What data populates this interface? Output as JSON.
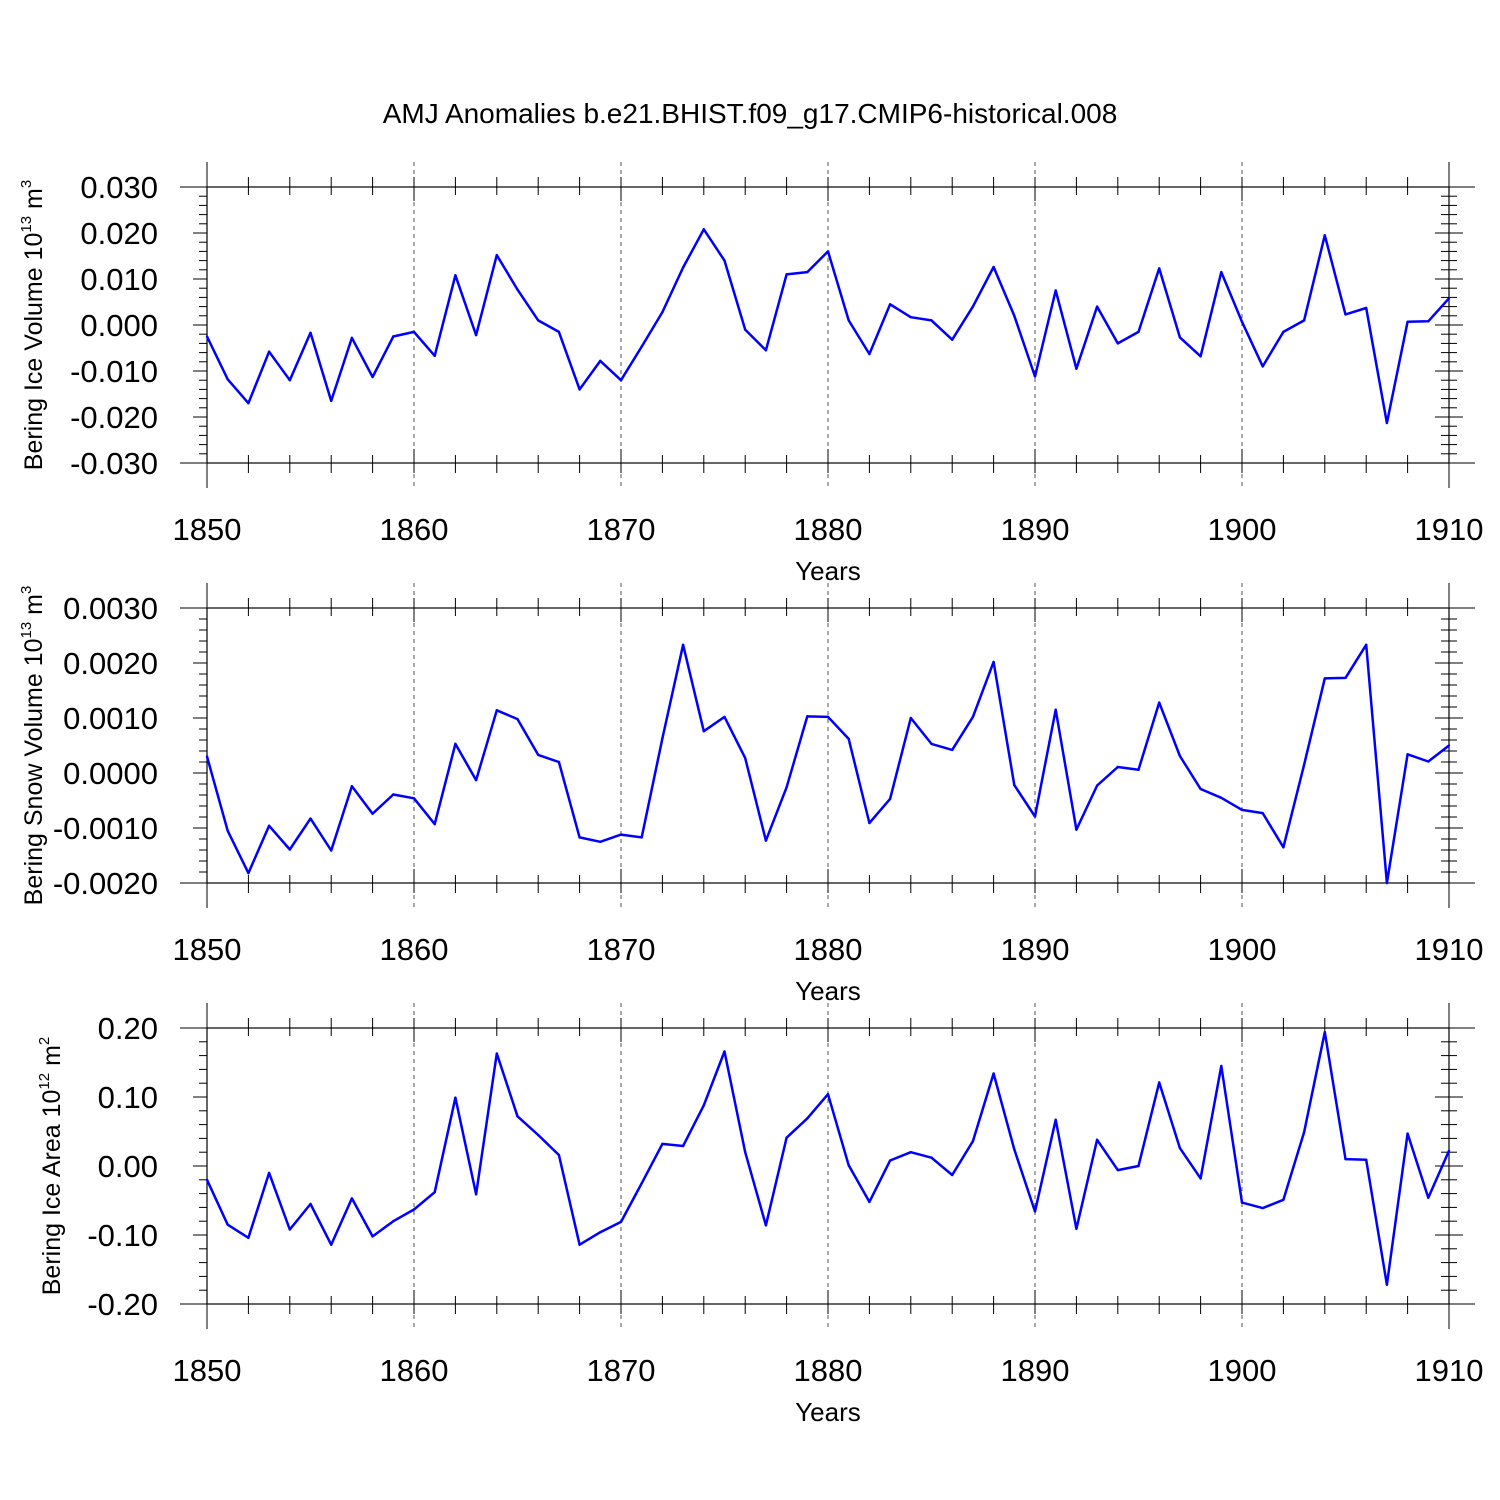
{
  "title": "AMJ Anomalies b.e21.BHIST.f09_g17.CMIP6-historical.008",
  "colors": {
    "series": "#0000ff",
    "axis": "#000000",
    "grid": "#555555"
  },
  "chart_data": [
    {
      "type": "line",
      "name": "ice-volume",
      "ylabel_main": "Bering Ice Volume 10",
      "ylabel_sup": "13",
      "ylabel_unit": " m",
      "ylabel_unit_sup": "3",
      "xlabel": "Years",
      "xlim": [
        1850,
        1910
      ],
      "ylim": [
        -0.03,
        0.03
      ],
      "xticks": [
        1850,
        1860,
        1870,
        1880,
        1890,
        1900,
        1910
      ],
      "xtick_labels": [
        "1850",
        "1860",
        "1870",
        "1880",
        "1890",
        "1900",
        "1910"
      ],
      "yticks": [
        -0.03,
        -0.02,
        -0.01,
        0.0,
        0.01,
        0.02,
        0.03
      ],
      "ytick_labels": [
        "-0.030",
        "-0.020",
        "-0.010",
        "0.000",
        "0.010",
        "0.020",
        "0.030"
      ],
      "grid_x": [
        1860,
        1870,
        1880,
        1890,
        1900
      ],
      "x": [
        1850,
        1851,
        1852,
        1853,
        1854,
        1855,
        1856,
        1857,
        1858,
        1859,
        1860,
        1861,
        1862,
        1863,
        1864,
        1865,
        1866,
        1867,
        1868,
        1869,
        1870,
        1871,
        1872,
        1873,
        1874,
        1875,
        1876,
        1877,
        1878,
        1879,
        1880,
        1881,
        1882,
        1883,
        1884,
        1885,
        1886,
        1887,
        1888,
        1889,
        1890,
        1891,
        1892,
        1893,
        1894,
        1895,
        1896,
        1897,
        1898,
        1899,
        1900,
        1901,
        1902,
        1903,
        1904,
        1905,
        1906,
        1907,
        1908,
        1909,
        1910
      ],
      "values": [
        -0.0025,
        -0.0118,
        -0.017,
        -0.0058,
        -0.012,
        -0.0017,
        -0.0165,
        -0.0028,
        -0.0113,
        -0.0025,
        -0.0015,
        -0.0067,
        0.0108,
        -0.0022,
        0.0152,
        0.0077,
        0.001,
        -0.0015,
        -0.014,
        -0.0078,
        -0.012,
        -0.0047,
        0.0028,
        0.0125,
        0.0208,
        0.014,
        -0.001,
        -0.0055,
        0.011,
        0.0115,
        0.016,
        0.001,
        -0.0063,
        0.0045,
        0.0017,
        0.001,
        -0.0032,
        0.004,
        0.0126,
        0.002,
        -0.0112,
        0.0075,
        -0.0095,
        0.004,
        -0.004,
        -0.0015,
        0.0123,
        -0.0027,
        -0.0068,
        0.0115,
        0.0007,
        -0.009,
        -0.0015,
        0.001,
        0.0195,
        0.0023,
        0.0037,
        -0.0213,
        0.0007,
        0.0008,
        0.0058
      ]
    },
    {
      "type": "line",
      "name": "snow-volume",
      "ylabel_main": "Bering Snow Volume 10",
      "ylabel_sup": "13",
      "ylabel_unit": " m",
      "ylabel_unit_sup": "3",
      "xlabel": "Years",
      "xlim": [
        1850,
        1910
      ],
      "ylim": [
        -0.002,
        0.003
      ],
      "xticks": [
        1850,
        1860,
        1870,
        1880,
        1890,
        1900,
        1910
      ],
      "xtick_labels": [
        "1850",
        "1860",
        "1870",
        "1880",
        "1890",
        "1900",
        "1910"
      ],
      "yticks": [
        -0.002,
        -0.001,
        0.0,
        0.001,
        0.002,
        0.003
      ],
      "ytick_labels": [
        "-0.0020",
        "-0.0010",
        "0.0000",
        "0.0010",
        "0.0020",
        "0.0030"
      ],
      "grid_x": [
        1860,
        1870,
        1880,
        1890,
        1900
      ],
      "x": [
        1850,
        1851,
        1852,
        1853,
        1854,
        1855,
        1856,
        1857,
        1858,
        1859,
        1860,
        1861,
        1862,
        1863,
        1864,
        1865,
        1866,
        1867,
        1868,
        1869,
        1870,
        1871,
        1872,
        1873,
        1874,
        1875,
        1876,
        1877,
        1878,
        1879,
        1880,
        1881,
        1882,
        1883,
        1884,
        1885,
        1886,
        1887,
        1888,
        1889,
        1890,
        1891,
        1892,
        1893,
        1894,
        1895,
        1896,
        1897,
        1898,
        1899,
        1900,
        1901,
        1902,
        1903,
        1904,
        1905,
        1906,
        1907,
        1908,
        1909,
        1910
      ],
      "values": [
        0.0003,
        -0.00105,
        -0.00182,
        -0.00096,
        -0.00139,
        -0.00083,
        -0.00141,
        -0.00024,
        -0.00074,
        -0.00039,
        -0.00046,
        -0.00093,
        0.00053,
        -0.00013,
        0.00114,
        0.00098,
        0.00033,
        0.0002,
        -0.00117,
        -0.00125,
        -0.00112,
        -0.00117,
        0.00063,
        0.00233,
        0.00076,
        0.00102,
        0.00027,
        -0.00123,
        -0.00026,
        0.00103,
        0.00102,
        0.00062,
        -0.00091,
        -0.00047,
        0.001,
        0.00053,
        0.00042,
        0.00102,
        0.00202,
        -0.00022,
        -0.00079,
        0.00115,
        -0.00103,
        -0.00023,
        0.00011,
        6e-05,
        0.00128,
        0.00031,
        -0.00029,
        -0.00045,
        -0.00067,
        -0.00073,
        -0.00135,
        0.00015,
        0.00172,
        0.00173,
        0.00233,
        -0.002,
        0.00034,
        0.00021,
        0.0005
      ]
    },
    {
      "type": "line",
      "name": "ice-area",
      "ylabel_main": "Bering Ice Area 10",
      "ylabel_sup": "12",
      "ylabel_unit": " m",
      "ylabel_unit_sup": "2",
      "xlabel": "Years",
      "xlim": [
        1850,
        1910
      ],
      "ylim": [
        -0.2,
        0.2
      ],
      "xticks": [
        1850,
        1860,
        1870,
        1880,
        1890,
        1900,
        1910
      ],
      "xtick_labels": [
        "1850",
        "1860",
        "1870",
        "1880",
        "1890",
        "1900",
        "1910"
      ],
      "yticks": [
        -0.2,
        -0.1,
        0.0,
        0.1,
        0.2
      ],
      "ytick_labels": [
        "-0.20",
        "-0.10",
        "0.00",
        "0.10",
        "0.20"
      ],
      "grid_x": [
        1860,
        1870,
        1880,
        1890,
        1900
      ],
      "x": [
        1850,
        1851,
        1852,
        1853,
        1854,
        1855,
        1856,
        1857,
        1858,
        1859,
        1860,
        1861,
        1862,
        1863,
        1864,
        1865,
        1866,
        1867,
        1868,
        1869,
        1870,
        1871,
        1872,
        1873,
        1874,
        1875,
        1876,
        1877,
        1878,
        1879,
        1880,
        1881,
        1882,
        1883,
        1884,
        1885,
        1886,
        1887,
        1888,
        1889,
        1890,
        1891,
        1892,
        1893,
        1894,
        1895,
        1896,
        1897,
        1898,
        1899,
        1900,
        1901,
        1902,
        1903,
        1904,
        1905,
        1906,
        1907,
        1908,
        1909,
        1910
      ],
      "values": [
        -0.02,
        -0.085,
        -0.104,
        -0.01,
        -0.092,
        -0.055,
        -0.114,
        -0.047,
        -0.102,
        -0.08,
        -0.063,
        -0.038,
        0.099,
        -0.041,
        0.163,
        0.072,
        0.045,
        0.016,
        -0.114,
        -0.096,
        -0.081,
        -0.025,
        0.032,
        0.029,
        0.088,
        0.166,
        0.02,
        -0.086,
        0.041,
        0.069,
        0.104,
        0.001,
        -0.052,
        0.008,
        0.02,
        0.012,
        -0.013,
        0.036,
        0.134,
        0.024,
        -0.066,
        0.067,
        -0.091,
        0.038,
        -0.006,
        0.0,
        0.121,
        0.026,
        -0.018,
        0.145,
        -0.053,
        -0.061,
        -0.049,
        0.049,
        0.194,
        0.01,
        0.009,
        -0.172,
        0.047,
        -0.046,
        0.022
      ]
    }
  ]
}
